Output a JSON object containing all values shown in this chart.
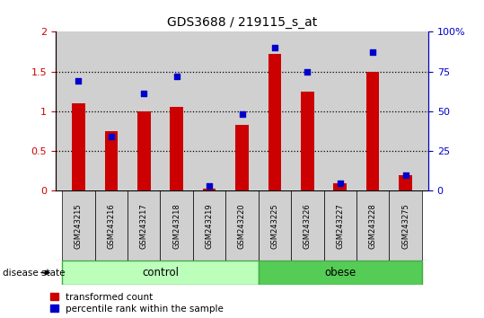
{
  "title": "GDS3688 / 219115_s_at",
  "samples": [
    "GSM243215",
    "GSM243216",
    "GSM243217",
    "GSM243218",
    "GSM243219",
    "GSM243220",
    "GSM243225",
    "GSM243226",
    "GSM243227",
    "GSM243228",
    "GSM243275"
  ],
  "transformed_count": [
    1.1,
    0.75,
    1.0,
    1.05,
    0.03,
    0.83,
    1.72,
    1.25,
    0.1,
    1.5,
    0.2
  ],
  "percentile_rank": [
    69,
    34,
    61,
    72,
    3,
    48,
    90,
    75,
    5,
    87,
    10
  ],
  "n_control": 6,
  "n_obese": 5,
  "bar_color": "#cc0000",
  "dot_color": "#0000cc",
  "ylim_left": [
    0,
    2
  ],
  "ylim_right": [
    0,
    100
  ],
  "yticks_left": [
    0,
    0.5,
    1.0,
    1.5,
    2.0
  ],
  "ytick_labels_left": [
    "0",
    "0.5",
    "1",
    "1.5",
    "2"
  ],
  "yticks_right": [
    0,
    25,
    50,
    75,
    100
  ],
  "ytick_labels_right": [
    "0",
    "25",
    "50",
    "75",
    "100%"
  ],
  "control_color": "#bbffbb",
  "obese_color": "#55cc55",
  "bar_area_color": "#d0d0d0",
  "legend_red_label": "transformed count",
  "legend_blue_label": "percentile rank within the sample",
  "disease_state_label": "disease state",
  "control_label": "control",
  "obese_label": "obese",
  "title_fontsize": 10,
  "tick_fontsize": 8,
  "sample_fontsize": 6,
  "bar_width": 0.4
}
